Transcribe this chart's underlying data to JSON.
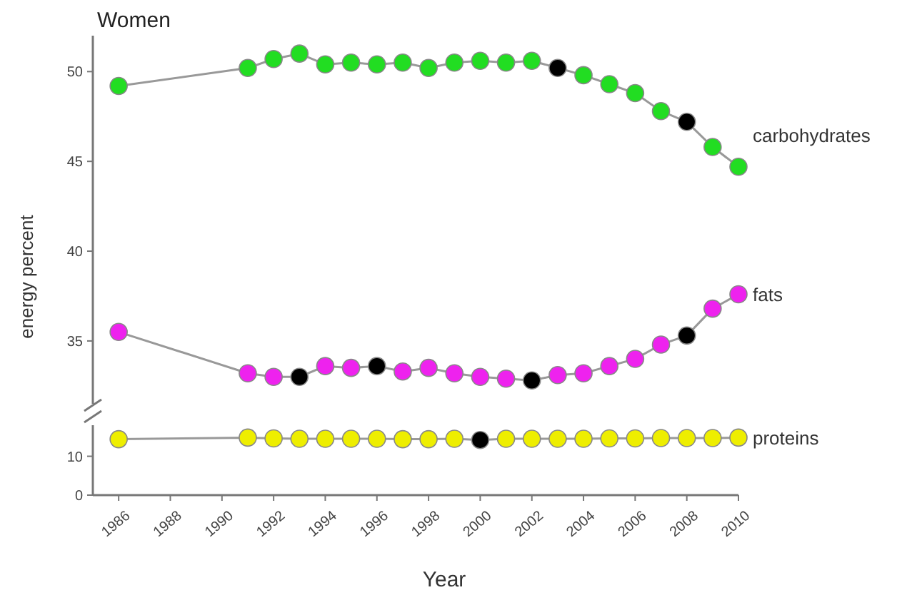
{
  "chart_data": [
    {
      "type": "line",
      "title": "Women",
      "ylabel": "energy percent",
      "x": [
        1986,
        1991,
        1992,
        1993,
        1994,
        1995,
        1996,
        1997,
        1998,
        1999,
        2000,
        2001,
        2002,
        2003,
        2004,
        2005,
        2006,
        2007,
        2008,
        2009,
        2010
      ],
      "xlim": [
        1985,
        2010
      ],
      "ylim": [
        31.5,
        52
      ],
      "yticks": [
        35,
        40,
        45,
        50
      ],
      "tick_labels": "y",
      "marker": "circle",
      "line_style": "solid",
      "grid": false,
      "series": [
        {
          "name": "carbohydrates",
          "colors": [
            "#22dd22",
            "#22dd22",
            "#22dd22",
            "#22dd22",
            "#22dd22",
            "#22dd22",
            "#22dd22",
            "#22dd22",
            "#22dd22",
            "#22dd22",
            "#22dd22",
            "#22dd22",
            "#22dd22",
            "#000000",
            "#22dd22",
            "#22dd22",
            "#22dd22",
            "#22dd22",
            "#000000",
            "#22dd22",
            "#22dd22"
          ],
          "values": [
            49.2,
            50.2,
            50.7,
            51.0,
            50.4,
            50.5,
            50.4,
            50.5,
            50.2,
            50.5,
            50.6,
            50.5,
            50.6,
            50.2,
            49.8,
            49.3,
            48.8,
            47.8,
            47.2,
            45.8,
            44.7
          ]
        },
        {
          "name": "fats",
          "colors": [
            "#ee22ee",
            "#ee22ee",
            "#ee22ee",
            "#000000",
            "#ee22ee",
            "#ee22ee",
            "#000000",
            "#ee22ee",
            "#ee22ee",
            "#ee22ee",
            "#ee22ee",
            "#ee22ee",
            "#000000",
            "#ee22ee",
            "#ee22ee",
            "#ee22ee",
            "#ee22ee",
            "#ee22ee",
            "#000000",
            "#ee22ee",
            "#ee22ee"
          ],
          "values": [
            35.5,
            33.2,
            33.0,
            33.0,
            33.6,
            33.5,
            33.6,
            33.3,
            33.5,
            33.2,
            33.0,
            32.9,
            32.8,
            33.1,
            33.2,
            33.6,
            34.0,
            34.8,
            35.3,
            36.8,
            37.6
          ]
        }
      ]
    },
    {
      "type": "line",
      "xlabel": "Year",
      "x": [
        1986,
        1991,
        1992,
        1993,
        1994,
        1995,
        1996,
        1997,
        1998,
        1999,
        2000,
        2001,
        2002,
        2003,
        2004,
        2005,
        2006,
        2007,
        2008,
        2009,
        2010
      ],
      "xlim": [
        1985,
        2010
      ],
      "xticks": [
        1986,
        1988,
        1990,
        1992,
        1994,
        1996,
        1998,
        2000,
        2002,
        2004,
        2006,
        2008,
        2010
      ],
      "ylim": [
        0,
        18
      ],
      "yticks": [
        0,
        10
      ],
      "marker": "circle",
      "line_style": "solid",
      "grid": false,
      "series": [
        {
          "name": "proteins",
          "colors": [
            "#eeee00",
            "#eeee00",
            "#eeee00",
            "#eeee00",
            "#eeee00",
            "#eeee00",
            "#eeee00",
            "#eeee00",
            "#eeee00",
            "#eeee00",
            "#000000",
            "#eeee00",
            "#eeee00",
            "#eeee00",
            "#eeee00",
            "#eeee00",
            "#eeee00",
            "#eeee00",
            "#eeee00",
            "#eeee00",
            "#eeee00"
          ],
          "values": [
            14.4,
            14.8,
            14.6,
            14.5,
            14.5,
            14.5,
            14.5,
            14.4,
            14.4,
            14.5,
            14.2,
            14.5,
            14.5,
            14.5,
            14.5,
            14.6,
            14.6,
            14.7,
            14.7,
            14.7,
            14.8
          ]
        }
      ]
    }
  ]
}
